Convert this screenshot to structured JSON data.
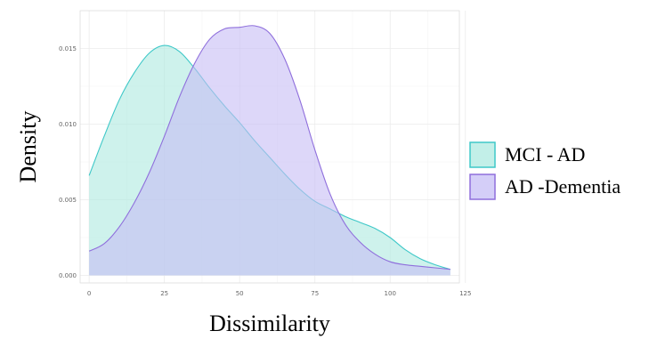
{
  "chart_data": {
    "type": "area",
    "xlabel": "Dissimilarity",
    "ylabel": "Density",
    "xlim": [
      -3,
      123
    ],
    "ylim": [
      -0.0005,
      0.0175
    ],
    "x_ticks": [
      {
        "value": 0,
        "label": "0"
      },
      {
        "value": 25,
        "label": "25"
      },
      {
        "value": 50,
        "label": "50"
      },
      {
        "value": 75,
        "label": "75"
      },
      {
        "value": 100,
        "label": "100"
      },
      {
        "value": 125,
        "label": "125"
      }
    ],
    "y_ticks": [
      {
        "value": 0,
        "label": "0.000"
      },
      {
        "value": 0.005,
        "label": "0.005"
      },
      {
        "value": 0.01,
        "label": "0.010"
      },
      {
        "value": 0.015,
        "label": "0.015"
      }
    ],
    "grid": true,
    "legend_position": "right",
    "series": [
      {
        "name": "MCI - AD",
        "fill": "#aee9e0",
        "stroke": "#3ec8c8",
        "points": [
          [
            0,
            0.0066
          ],
          [
            5,
            0.0092
          ],
          [
            10,
            0.0116
          ],
          [
            15,
            0.0134
          ],
          [
            20,
            0.0147
          ],
          [
            25,
            0.0152
          ],
          [
            30,
            0.0148
          ],
          [
            35,
            0.0137
          ],
          [
            40,
            0.0124
          ],
          [
            45,
            0.0112
          ],
          [
            50,
            0.0101
          ],
          [
            55,
            0.0089
          ],
          [
            60,
            0.0078
          ],
          [
            65,
            0.0067
          ],
          [
            70,
            0.0057
          ],
          [
            75,
            0.0049
          ],
          [
            80,
            0.0044
          ],
          [
            85,
            0.0039
          ],
          [
            90,
            0.0035
          ],
          [
            95,
            0.0031
          ],
          [
            100,
            0.0025
          ],
          [
            105,
            0.0017
          ],
          [
            110,
            0.0011
          ],
          [
            115,
            0.0007
          ],
          [
            120,
            0.0004
          ]
        ]
      },
      {
        "name": "AD -Dementia",
        "fill": "#c6bdf5",
        "stroke": "#8f6fdc",
        "points": [
          [
            0,
            0.0016
          ],
          [
            5,
            0.0021
          ],
          [
            10,
            0.0032
          ],
          [
            15,
            0.0048
          ],
          [
            20,
            0.0068
          ],
          [
            25,
            0.0092
          ],
          [
            30,
            0.0118
          ],
          [
            35,
            0.014
          ],
          [
            40,
            0.0156
          ],
          [
            45,
            0.0163
          ],
          [
            50,
            0.0164
          ],
          [
            55,
            0.0165
          ],
          [
            60,
            0.016
          ],
          [
            65,
            0.0143
          ],
          [
            70,
            0.0116
          ],
          [
            75,
            0.0083
          ],
          [
            80,
            0.0054
          ],
          [
            85,
            0.0034
          ],
          [
            90,
            0.0022
          ],
          [
            95,
            0.0014
          ],
          [
            100,
            0.0009
          ],
          [
            105,
            0.0007
          ],
          [
            110,
            0.0006
          ],
          [
            115,
            0.0005
          ],
          [
            120,
            0.0004
          ]
        ]
      }
    ]
  }
}
